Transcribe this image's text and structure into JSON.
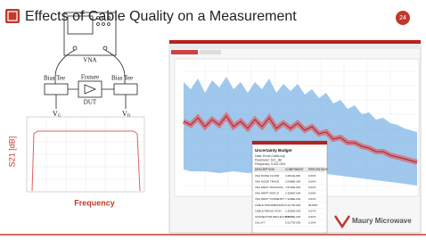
{
  "header": {
    "title": "Effects of Cable Quality on a Measurement",
    "page_number": "24"
  },
  "diagram": {
    "vna": "VNA",
    "fixture": "Fixture",
    "dut": "DUT",
    "bias_tee_left": "Bias Tee",
    "bias_tee_right": "Bias Tee",
    "vg": "V",
    "vg_sub": "G",
    "vd": "V",
    "vd_sub": "D"
  },
  "left_chart": {
    "y_label": "S21 [dB]",
    "x_label": "Frequency"
  },
  "budget": {
    "title": "Uncertainty Budget",
    "lines": [
      "Data: Excel-Cable.s4p",
      "Parameter: S21_dB",
      "Frequency: 3.022 GHz"
    ],
    "columns": [
      "DESCRIPTION",
      "COMPONENT",
      "PERCENTAGE"
    ],
    "rows": [
      [
        "VNA NOISE FLOOR",
        "4.4511E-006",
        "0.00%"
      ],
      [
        "VNA NOISE TRACE",
        "2.0998E-004",
        "0.00%"
      ],
      [
        "VNA DRIFT TRACKING",
        "7.8730E-004",
        "0.02%"
      ],
      [
        "VNA DRIFT MATCH",
        "2.3950E-004",
        "0.00%"
      ],
      [
        "VNA DRIFT SYMMETRY",
        "7.4268E-004",
        "0.01%"
      ],
      [
        "CABLE TRANSMISSION",
        "6.4177E-002",
        "99.80%"
      ],
      [
        "CABLE REFLECTION",
        "1.4520E-003",
        "0.07%"
      ],
      [
        "CONNECTOR REFLECTION",
        "3.1988E-004",
        "0.02%"
      ],
      [
        "CAL KIT",
        "2.0177E-003",
        "0.10%"
      ]
    ]
  },
  "footer": {
    "logo": "Maury Microwave"
  }
}
